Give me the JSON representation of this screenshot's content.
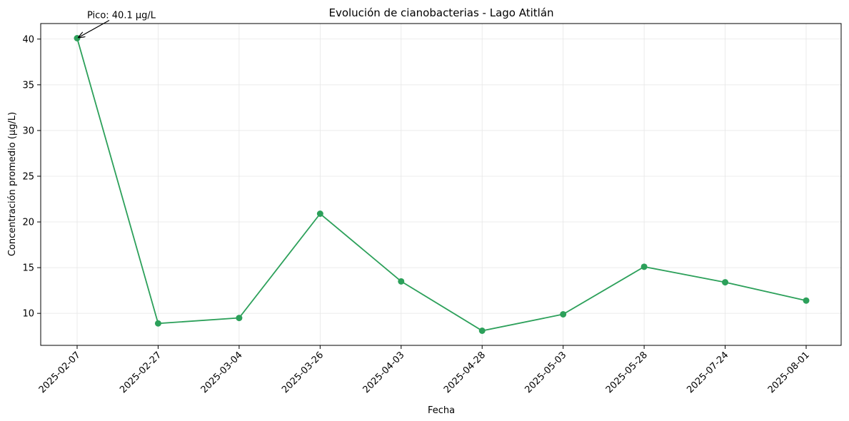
{
  "chart_data": {
    "type": "line",
    "title": "Evolución de cianobacterias - Lago Atitlán",
    "xlabel": "Fecha",
    "ylabel": "Concentración promedio (µg/L)",
    "categories": [
      "2025-02-07",
      "2025-02-27",
      "2025-03-04",
      "2025-03-26",
      "2025-04-03",
      "2025-04-28",
      "2025-05-03",
      "2025-05-28",
      "2025-07-24",
      "2025-08-01"
    ],
    "series": [
      {
        "values": [
          40.1,
          8.9,
          9.5,
          20.9,
          13.5,
          8.1,
          9.9,
          15.1,
          13.4,
          11.4
        ]
      }
    ],
    "yticks": [
      10,
      15,
      20,
      25,
      30,
      35,
      40
    ],
    "ylim": [
      6.5,
      41.7
    ],
    "grid": true,
    "color": "#2ca05a",
    "annotation": {
      "text": "Pico: 40.1 µg/L",
      "x": "2025-02-07",
      "y": 40.1
    }
  }
}
